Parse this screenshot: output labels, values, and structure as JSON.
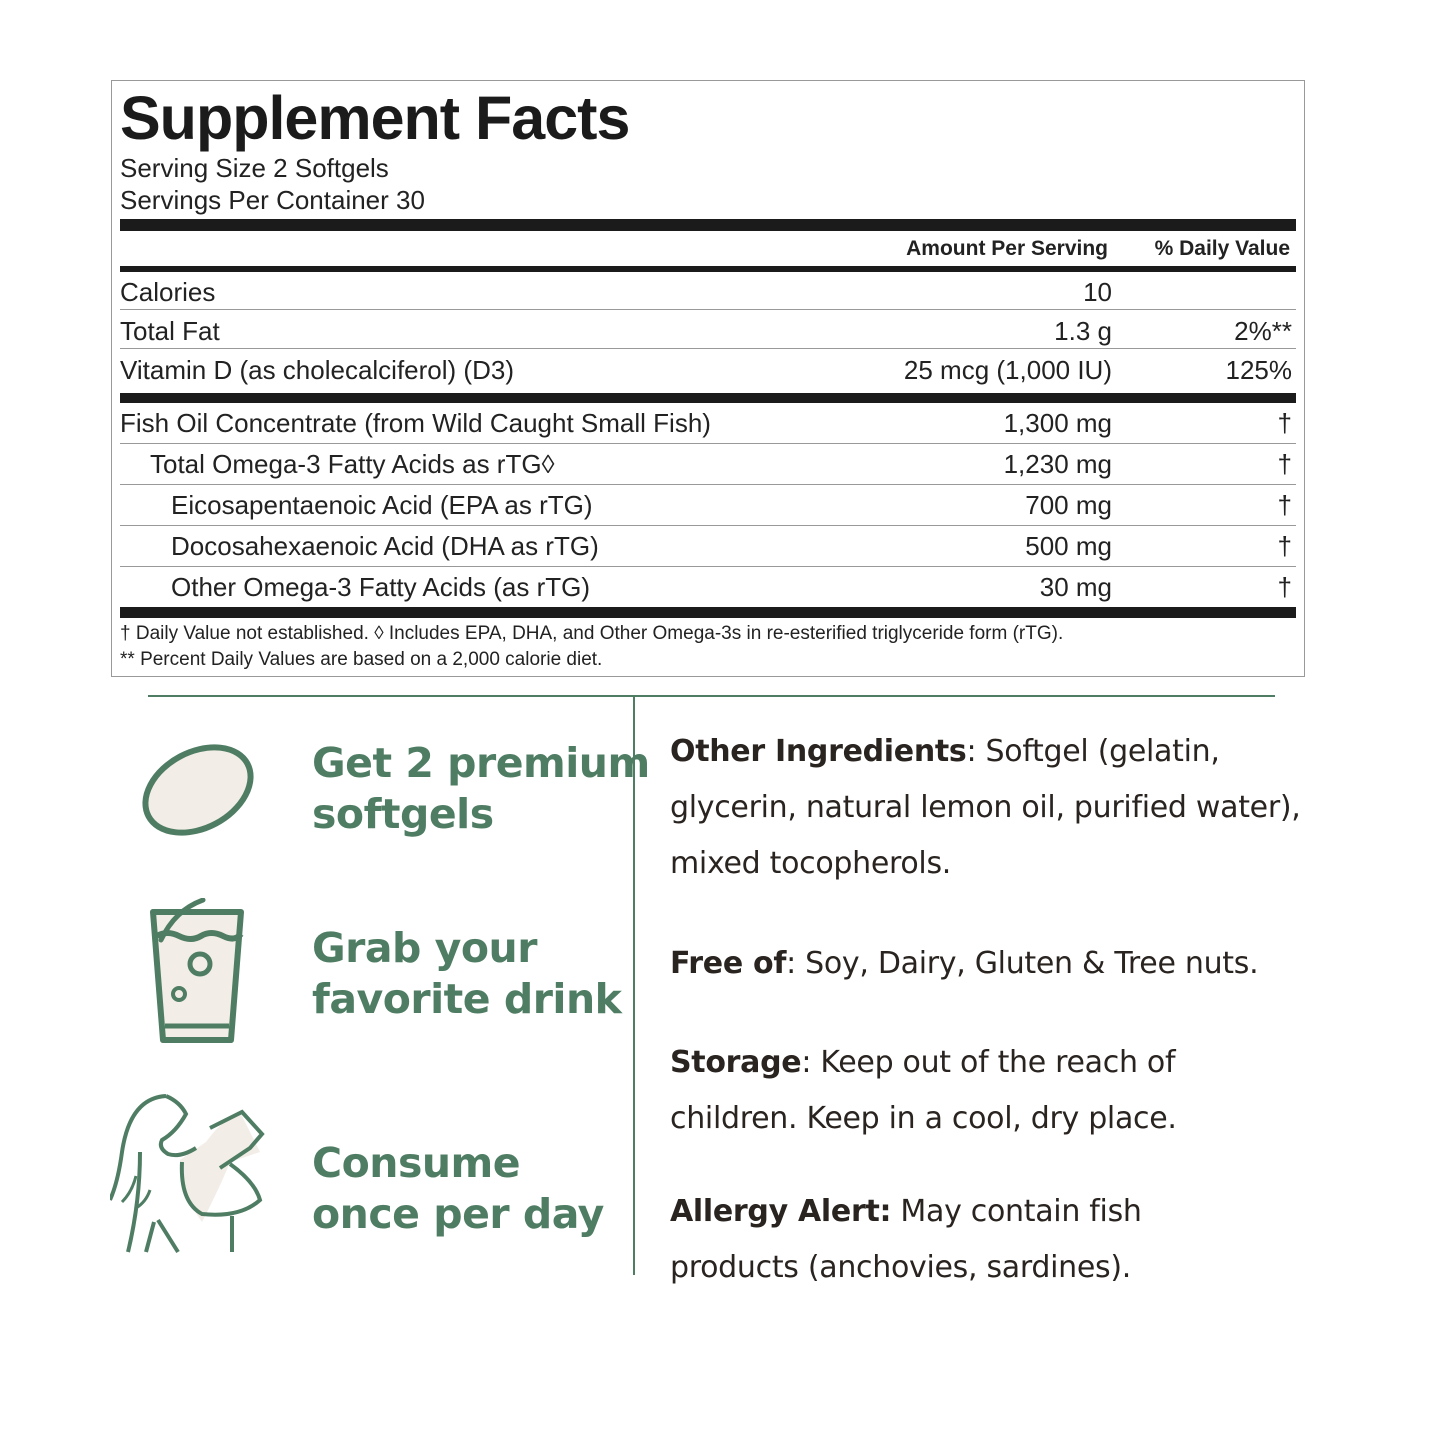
{
  "label": {
    "title": "Supplement Facts",
    "serving_size": "Serving Size 2 Softgels",
    "servings_per_container": "Servings Per Container 30",
    "col_amount": "Amount Per Serving",
    "col_dv": "% Daily Value",
    "rows": [
      {
        "name": "Calories",
        "amount": "10",
        "dv": ""
      },
      {
        "name": "Total Fat",
        "amount": "1.3 g",
        "dv": "2%**"
      },
      {
        "name": "Vitamin D (as cholecalciferol) (D3)",
        "amount": "25 mcg (1,000 IU)",
        "dv": "125%"
      },
      {
        "name": "Fish Oil Concentrate (from Wild Caught Small Fish)",
        "amount": "1,300 mg",
        "dv": "†"
      },
      {
        "name": "Total Omega-3 Fatty Acids as rTG◊",
        "amount": "1,230 mg",
        "dv": "†"
      },
      {
        "name": "Eicosapentaenoic Acid (EPA as rTG)",
        "amount": "700 mg",
        "dv": "†"
      },
      {
        "name": "Docosahexaenoic Acid (DHA as rTG)",
        "amount": "500 mg",
        "dv": "†"
      },
      {
        "name": "Other Omega-3 Fatty Acids (as rTG)",
        "amount": "30 mg",
        "dv": "†"
      }
    ],
    "footnote_1": "† Daily Value not established. ◊ Includes EPA, DHA, and Other Omega-3s in re-esterified triglyceride form (rTG).",
    "footnote_2": "** Percent Daily Values are based on a 2,000 calorie diet."
  },
  "steps": [
    {
      "line1": "Get 2 premium",
      "line2": "softgels",
      "icon": "softgel-icon"
    },
    {
      "line1": "Grab your",
      "line2": "favorite drink",
      "icon": "glass-icon"
    },
    {
      "line1": "Consume",
      "line2": "once per day",
      "icon": "woman-drinking-icon"
    }
  ],
  "info": {
    "other_label": "Other Ingredients",
    "other_text": ": Softgel (gelatin, glycerin, natural lemon oil, purified water), mixed tocopherols.",
    "free_label": "Free of",
    "free_text": ": Soy, Dairy, Gluten & Tree nuts.",
    "storage_label": "Storage",
    "storage_text": ": Keep out of the reach of children. Keep in a cool, dry place.",
    "allergy_label": "Allergy Alert:",
    "allergy_text": " May contain fish products (anchovies, sardines)."
  },
  "colors": {
    "accent": "#4f7d63",
    "icon_fill": "#f2ede6",
    "text": "#222222"
  }
}
